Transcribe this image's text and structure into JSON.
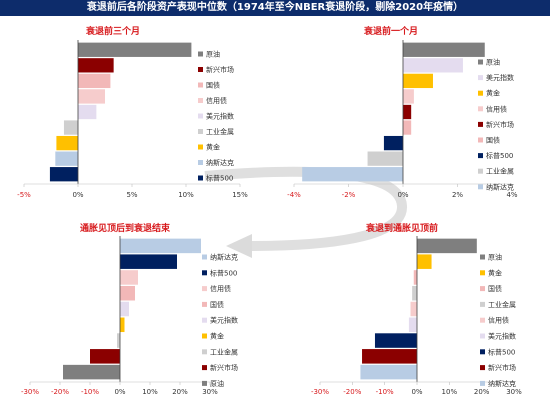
{
  "title": "衰退前后各阶段资产表现中位数（1974年至今NBER衰退阶段，剔除2020年疫情）",
  "colors": {
    "header_bg": "#0d2c6b",
    "negative_tick": "#d7191c",
    "arrow": "#d9d9d9",
    "原油": "#7f7f7f",
    "新兴市场": "#8b0000",
    "国债": "#f2b8b8",
    "信用债": "#f6cccc",
    "美元指数": "#e4dcef",
    "工业金属": "#cfcfcf",
    "黄金": "#ffc000",
    "纳斯达克": "#b8cce4",
    "标普500": "#002060"
  },
  "chart_data": [
    {
      "type": "bar",
      "orientation": "horizontal",
      "title": "衰退前三个月",
      "xlim": [
        -5,
        15
      ],
      "xticks": [
        "-5%",
        "0%",
        "5%",
        "10%",
        "15%"
      ],
      "categories": [
        "原油",
        "新兴市场",
        "国债",
        "信用债",
        "美元指数",
        "工业金属",
        "黄金",
        "纳斯达克",
        "标普500"
      ],
      "values": [
        10.5,
        3.3,
        3.0,
        2.5,
        1.7,
        -1.3,
        -2.0,
        -2.1,
        -2.6
      ]
    },
    {
      "type": "bar",
      "orientation": "horizontal",
      "title": "衰退前一个月",
      "xlim": [
        -4,
        4
      ],
      "xticks": [
        "-4%",
        "-2%",
        "0%",
        "2%",
        "4%"
      ],
      "categories": [
        "原油",
        "美元指数",
        "黄金",
        "信用债",
        "新兴市场",
        "国债",
        "标普500",
        "工业金属",
        "纳斯达克"
      ],
      "values": [
        3.0,
        2.2,
        1.1,
        0.4,
        0.3,
        0.3,
        -0.7,
        -1.3,
        -3.7
      ]
    },
    {
      "type": "bar",
      "orientation": "horizontal",
      "title": "通胀见顶后到衰退结束",
      "xlim": [
        -30,
        30
      ],
      "xticks": [
        "-30%",
        "-20%",
        "-10%",
        "0%",
        "10%",
        "20%",
        "30%"
      ],
      "categories": [
        "纳斯达克",
        "标普500",
        "信用债",
        "国债",
        "美元指数",
        "黄金",
        "工业金属",
        "新兴市场",
        "原油"
      ],
      "values": [
        27,
        19,
        6,
        5,
        3,
        1.5,
        -1,
        -10,
        -19
      ]
    },
    {
      "type": "bar",
      "orientation": "horizontal",
      "title": "衰退到通胀见顶前",
      "xlim": [
        -30,
        30
      ],
      "xticks": [
        "-30%",
        "-20%",
        "-10%",
        "0%",
        "10%",
        "20%",
        "30%"
      ],
      "categories": [
        "原油",
        "黄金",
        "国债",
        "工业金属",
        "信用债",
        "美元指数",
        "标普500",
        "新兴市场",
        "纳斯达克"
      ],
      "values": [
        18.5,
        4.5,
        -1,
        -1.5,
        -2,
        -2.5,
        -13,
        -17,
        -17.5
      ]
    }
  ]
}
